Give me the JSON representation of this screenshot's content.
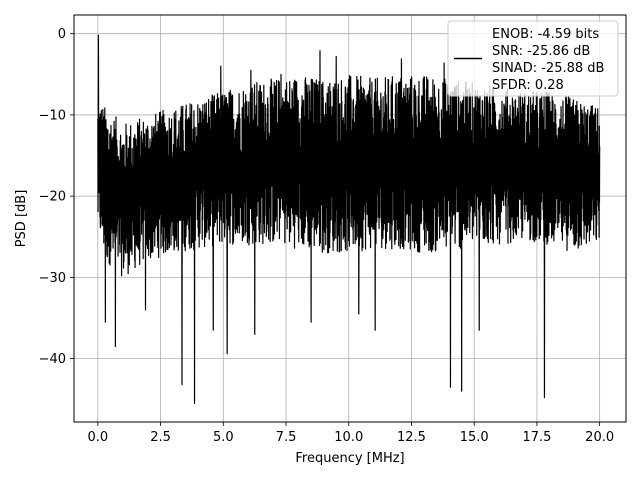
{
  "chart_data": {
    "type": "line",
    "title": "",
    "xlabel": "Frequency [MHz]",
    "ylabel": "PSD [dB]",
    "xlim": [
      -0.95,
      21.05
    ],
    "ylim": [
      -47.8,
      2.3
    ],
    "xticks": [
      0.0,
      2.5,
      5.0,
      7.5,
      10.0,
      12.5,
      15.0,
      17.5,
      20.0
    ],
    "xtick_labels": [
      "0.0",
      "2.5",
      "5.0",
      "7.5",
      "10.0",
      "12.5",
      "15.0",
      "17.5",
      "20.0"
    ],
    "yticks": [
      0,
      -10,
      -20,
      -30,
      -40
    ],
    "ytick_labels": [
      "0",
      "−10",
      "−20",
      "−30",
      "−40"
    ],
    "grid": true,
    "legend_position": "top-right",
    "legend": [
      "ENOB: -4.59 bits",
      "SNR: -25.86 dB",
      "SINAD: -25.88 dB",
      "SFDR: 0.28"
    ],
    "series": [
      {
        "color": "#000000",
        "band_x": [
          0.0,
          0.3,
          1.0,
          2.0,
          3.0,
          4.0,
          5.0,
          6.0,
          7.0,
          8.0,
          9.0,
          10.0,
          11.0,
          12.0,
          13.0,
          14.0,
          15.0,
          16.0,
          17.0,
          18.0,
          19.0,
          20.0
        ],
        "band_upper": [
          -8.0,
          -9.0,
          -11.0,
          -10.0,
          -9.0,
          -8.0,
          -7.0,
          -6.0,
          -5.5,
          -5.0,
          -5.5,
          -5.0,
          -5.5,
          -5.0,
          -5.0,
          -5.5,
          -6.0,
          -6.5,
          -7.0,
          -7.0,
          -8.0,
          -9.0
        ],
        "band_lower": [
          -24.0,
          -28.0,
          -30.0,
          -28.0,
          -27.0,
          -26.5,
          -26.0,
          -26.0,
          -26.0,
          -26.5,
          -27.0,
          -27.0,
          -26.5,
          -26.5,
          -27.0,
          -27.0,
          -26.0,
          -26.0,
          -25.5,
          -26.0,
          -27.0,
          -26.0
        ],
        "peaks_x": [
          0.02,
          8.85,
          9.5,
          12.1,
          4.9,
          6.1,
          13.8,
          7.3
        ],
        "peaks_y": [
          -0.2,
          -2.1,
          -2.8,
          -3.1,
          -4.0,
          -4.5,
          -3.6,
          -5.0
        ],
        "dips_x": [
          0.3,
          0.7,
          1.9,
          3.35,
          3.85,
          4.6,
          5.15,
          6.25,
          8.5,
          11.05,
          14.05,
          14.5,
          17.8,
          15.2,
          10.4
        ],
        "dips_y": [
          -35.5,
          -38.5,
          -34.0,
          -43.2,
          -45.5,
          -36.5,
          -39.4,
          -37.0,
          -35.5,
          -36.5,
          -43.5,
          -44.0,
          -44.8,
          -36.5,
          -34.5
        ]
      }
    ]
  }
}
